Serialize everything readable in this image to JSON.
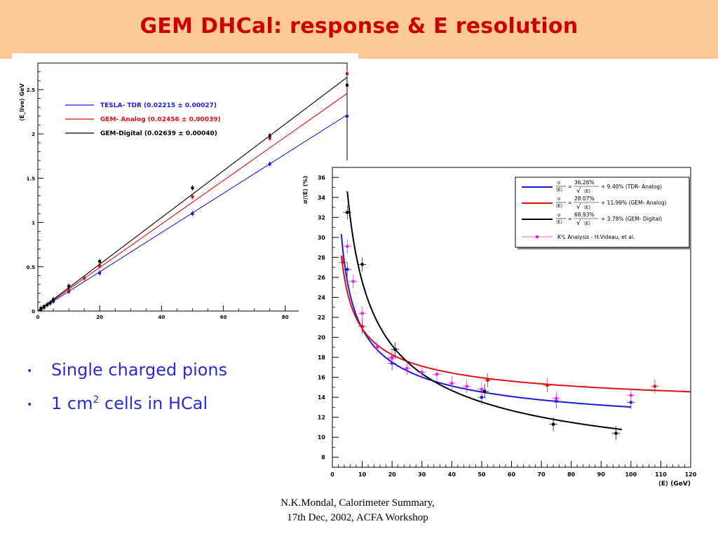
{
  "slide": {
    "title": "GEM DHCal: response & E resolution",
    "bullets": [
      {
        "text": "Single charged pions"
      },
      {
        "pre": "1 cm",
        "sup": "2",
        "post": " cells in HCal"
      }
    ],
    "footer": [
      "N.K.Mondal, Calorimeter Summary,",
      "17th Dec, 2002, ACFA Workshop"
    ],
    "colors": {
      "header_bg": "#fdc999",
      "title": "#cc0000",
      "bullets": "#2b2bd6"
    }
  },
  "chart_data": [
    {
      "type": "line",
      "ylabel": "⟨E_live⟩ GeV",
      "xlabel": "",
      "xlim": [
        0,
        100
      ],
      "ylim": [
        0,
        2.8
      ],
      "x_ticks": [
        "0",
        "20",
        "40",
        "60",
        "80"
      ],
      "y_ticks": [
        "0",
        "0.5",
        "1",
        "1.5",
        "2",
        "2.5"
      ],
      "legend_placement": "top-left",
      "series": [
        {
          "name": "TESLA- TDR (0.02215 ± 0.00027)",
          "color": "#1a1adb",
          "slope": 0.02215,
          "points": [
            {
              "x": 1,
              "y": 0.02
            },
            {
              "x": 2,
              "y": 0.04
            },
            {
              "x": 5,
              "y": 0.11
            },
            {
              "x": 10,
              "y": 0.22
            },
            {
              "x": 20,
              "y": 0.43
            },
            {
              "x": 50,
              "y": 1.1
            },
            {
              "x": 75,
              "y": 1.66
            },
            {
              "x": 100,
              "y": 2.2
            }
          ]
        },
        {
          "name": "GEM- Analog (0.02456 ± 0.00039)",
          "color": "#dd1111",
          "slope": 0.02456,
          "points": [
            {
              "x": 10,
              "y": 0.24
            },
            {
              "x": 15,
              "y": 0.37
            },
            {
              "x": 20,
              "y": 0.51
            },
            {
              "x": 50,
              "y": 1.29
            },
            {
              "x": 75,
              "y": 1.95
            },
            {
              "x": 100,
              "y": 2.68
            }
          ]
        },
        {
          "name": "GEM-Digital (0.02639 ± 0.00040)",
          "color": "#000000",
          "slope": 0.02639,
          "points": [
            {
              "x": 1,
              "y": 0.03
            },
            {
              "x": 2,
              "y": 0.05
            },
            {
              "x": 3,
              "y": 0.07
            },
            {
              "x": 4,
              "y": 0.09
            },
            {
              "x": 5,
              "y": 0.13
            },
            {
              "x": 10,
              "y": 0.28
            },
            {
              "x": 20,
              "y": 0.56
            },
            {
              "x": 50,
              "y": 1.39
            },
            {
              "x": 75,
              "y": 1.98
            },
            {
              "x": 100,
              "y": 2.55
            }
          ]
        }
      ]
    },
    {
      "type": "scatter",
      "ylabel": "σ/⟨E⟩ (%)",
      "xlabel": "⟨E⟩ (GeV)",
      "xlim": [
        0,
        120
      ],
      "ylim": [
        7,
        37
      ],
      "x_ticks": [
        "0",
        "10",
        "20",
        "30",
        "40",
        "50",
        "60",
        "70",
        "80",
        "90",
        "100",
        "110",
        "120"
      ],
      "y_ticks": [
        "8",
        "10",
        "12",
        "14",
        "16",
        "18",
        "20",
        "22",
        "24",
        "26",
        "28",
        "30",
        "32",
        "34",
        "36"
      ],
      "legend_placement": "top-right",
      "series": [
        {
          "name_num": "36.26%",
          "name_rest": "+  9.40% (TDR- Analog)",
          "color": "#1a1adb",
          "a": 36.26,
          "b": 9.4,
          "fit_range": [
            3,
            100
          ],
          "points": [
            {
              "x": 5,
              "y": 26.8
            },
            {
              "x": 10,
              "y": 21.1
            },
            {
              "x": 20,
              "y": 17.4
            },
            {
              "x": 50,
              "y": 14.0
            },
            {
              "x": 75,
              "y": 13.6
            },
            {
              "x": 100,
              "y": 13.5
            }
          ]
        },
        {
          "name_num": "28.07%",
          "name_rest": "+ 11.99% (GEM- Analog)",
          "color": "#dd1111",
          "a": 28.07,
          "b": 11.99,
          "fit_range": [
            3,
            120
          ],
          "points": [
            {
              "x": 3.5,
              "y": 27.5
            },
            {
              "x": 10,
              "y": 21.1
            },
            {
              "x": 20,
              "y": 18.0
            },
            {
              "x": 52,
              "y": 15.7
            },
            {
              "x": 72,
              "y": 15.2
            },
            {
              "x": 108,
              "y": 15.1
            }
          ]
        },
        {
          "name_num": "68.93%",
          "name_rest": "+  3.78% (GEM- Digital)",
          "color": "#000000",
          "a": 68.93,
          "b": 3.78,
          "fit_range": [
            5,
            97
          ],
          "points": [
            {
              "x": 5,
              "y": 32.5
            },
            {
              "x": 10,
              "y": 27.3
            },
            {
              "x": 21,
              "y": 18.8
            },
            {
              "x": 51,
              "y": 14.6
            },
            {
              "x": 74,
              "y": 11.3
            },
            {
              "x": 95,
              "y": 10.4
            }
          ]
        },
        {
          "name": "K⁰L Analysis -  H.Videau, et al.",
          "color": "#ee22ee",
          "points": [
            {
              "x": 5,
              "y": 29.1
            },
            {
              "x": 7,
              "y": 25.6
            },
            {
              "x": 10,
              "y": 22.4
            },
            {
              "x": 15,
              "y": 19.0
            },
            {
              "x": 20,
              "y": 17.9
            },
            {
              "x": 25,
              "y": 16.9
            },
            {
              "x": 30,
              "y": 16.5
            },
            {
              "x": 35,
              "y": 16.3
            },
            {
              "x": 40,
              "y": 15.4
            },
            {
              "x": 45,
              "y": 15.1
            },
            {
              "x": 50,
              "y": 14.8
            },
            {
              "x": 75,
              "y": 13.9
            },
            {
              "x": 100,
              "y": 14.2
            }
          ]
        }
      ]
    }
  ]
}
